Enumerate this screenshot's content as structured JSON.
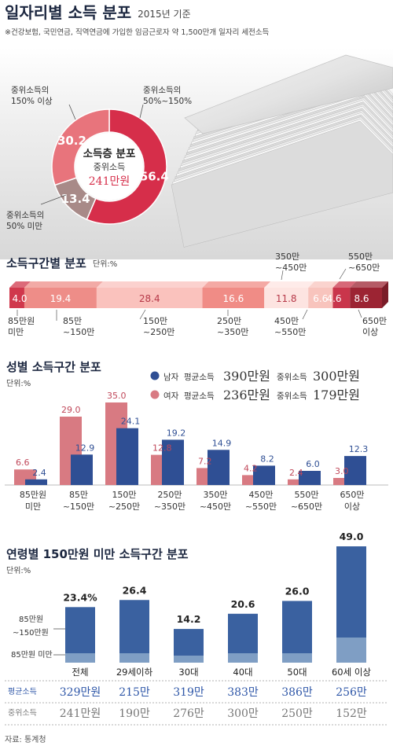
{
  "header": {
    "title": "일자리별 소득 분포",
    "year_note": "2015년 기준",
    "subnote": "※건강보험, 국민연금, 직역연금에 가입한 임금근로자 약 1,500만개 일자리 세전소득"
  },
  "colors": {
    "crimson": "#d62e4a",
    "pink": "#e8747c",
    "mauve": "#a88a88",
    "male": "#2f4f94",
    "female": "#d87a82",
    "age_bar": "#3a61a0",
    "age_base": "#7f9ec4",
    "blue_text": "#2f57a8",
    "gray_text": "#777777"
  },
  "chart_data": [
    {
      "id": "donut",
      "type": "pie",
      "center_title": "소득층 분포",
      "center_sub": "중위소득",
      "center_value": "241만원",
      "slices": [
        {
          "value": 56.4,
          "label": "56.4",
          "name_lines": [
            "중위소득의",
            "50%~150%"
          ]
        },
        {
          "value": 13.4,
          "label": "13.4",
          "name_lines": [
            "중위소득의",
            "50% 미만"
          ]
        },
        {
          "value": 30.2,
          "label": "30.2",
          "name_lines": [
            "중위소득의",
            "150% 이상"
          ]
        }
      ]
    },
    {
      "id": "band",
      "type": "bar",
      "title": "소득구간별 분포",
      "unit": "단위:%",
      "segments": [
        {
          "value": 4.0,
          "label": "4.0",
          "lines": [
            "85만원",
            "미만"
          ]
        },
        {
          "value": 19.4,
          "label": "19.4",
          "lines": [
            "85만",
            "~150만"
          ]
        },
        {
          "value": 28.4,
          "label": "28.4",
          "lines": [
            "150만",
            "~250만"
          ]
        },
        {
          "value": 16.6,
          "label": "16.6",
          "lines": [
            "250만",
            "~350만"
          ]
        },
        {
          "value": 11.8,
          "label": "11.8",
          "lines": [
            "350만",
            "~450만"
          ]
        },
        {
          "value": 6.6,
          "label": "6.6",
          "lines": [
            "450만",
            "~550만"
          ]
        },
        {
          "value": 4.6,
          "label": "4.6",
          "lines": [
            "550만",
            "~650만"
          ]
        },
        {
          "value": 8.6,
          "label": "8.6",
          "lines": [
            "650만",
            "이상"
          ]
        }
      ]
    },
    {
      "id": "gender",
      "type": "bar",
      "title": "성별 소득구간 분포",
      "unit": "단위:%",
      "categories": [
        [
          "85만원",
          "미만"
        ],
        [
          "85만",
          "~150만"
        ],
        [
          "150만",
          "~250만"
        ],
        [
          "250만",
          "~350만"
        ],
        [
          "350만",
          "~450만"
        ],
        [
          "450만",
          "~550만"
        ],
        [
          "550만",
          "~650만"
        ],
        [
          "650만",
          "이상"
        ]
      ],
      "series": [
        {
          "name": "여자",
          "values": [
            6.6,
            29.0,
            35.0,
            12.8,
            7.2,
            4.2,
            2.4,
            3.0
          ],
          "labels": [
            "6.6",
            "29.0",
            "35.0",
            "12.8",
            "7.2",
            "4.2",
            "2.4",
            "3.0"
          ]
        },
        {
          "name": "남자",
          "values": [
            2.4,
            12.9,
            24.1,
            19.2,
            14.9,
            8.2,
            6.0,
            12.3
          ],
          "labels": [
            "2.4",
            "12.9",
            "24.1",
            "19.2",
            "14.9",
            "8.2",
            "6.0",
            "12.3"
          ]
        }
      ],
      "legend": {
        "male": {
          "name": "남자",
          "avg_label": "평균소득",
          "avg_value": "390만원",
          "median_label": "중위소득",
          "median_value": "300만원"
        },
        "female": {
          "name": "여자",
          "avg_label": "평균소득",
          "avg_value": "236만원",
          "median_label": "중위소득",
          "median_value": "179만원"
        }
      },
      "ylim": [
        0,
        36
      ]
    },
    {
      "id": "age",
      "type": "bar",
      "title": "연령별 150만원 미만 소득구간 분포",
      "unit": "단위:%",
      "categories": [
        "전체",
        "29세이하",
        "30대",
        "40대",
        "50대",
        "60세 이상"
      ],
      "values": [
        23.4,
        26.4,
        14.2,
        20.6,
        26.0,
        49.0
      ],
      "labels": [
        "23.4%",
        "26.4",
        "14.2",
        "20.6",
        "26.0",
        "49.0"
      ],
      "layer_labels": {
        "upper": [
          "85만원",
          "~150만원"
        ],
        "lower": "85만원 미만"
      },
      "rows": [
        {
          "label": "평균소득",
          "values": [
            "329만원",
            "215만",
            "319만",
            "383만",
            "386만",
            "256만"
          ]
        },
        {
          "label": "중위소득",
          "values": [
            "241만원",
            "190만",
            "276만",
            "300만",
            "250만",
            "152만"
          ]
        }
      ],
      "ylim": [
        0,
        50
      ]
    }
  ],
  "source": "자료: 통계청"
}
